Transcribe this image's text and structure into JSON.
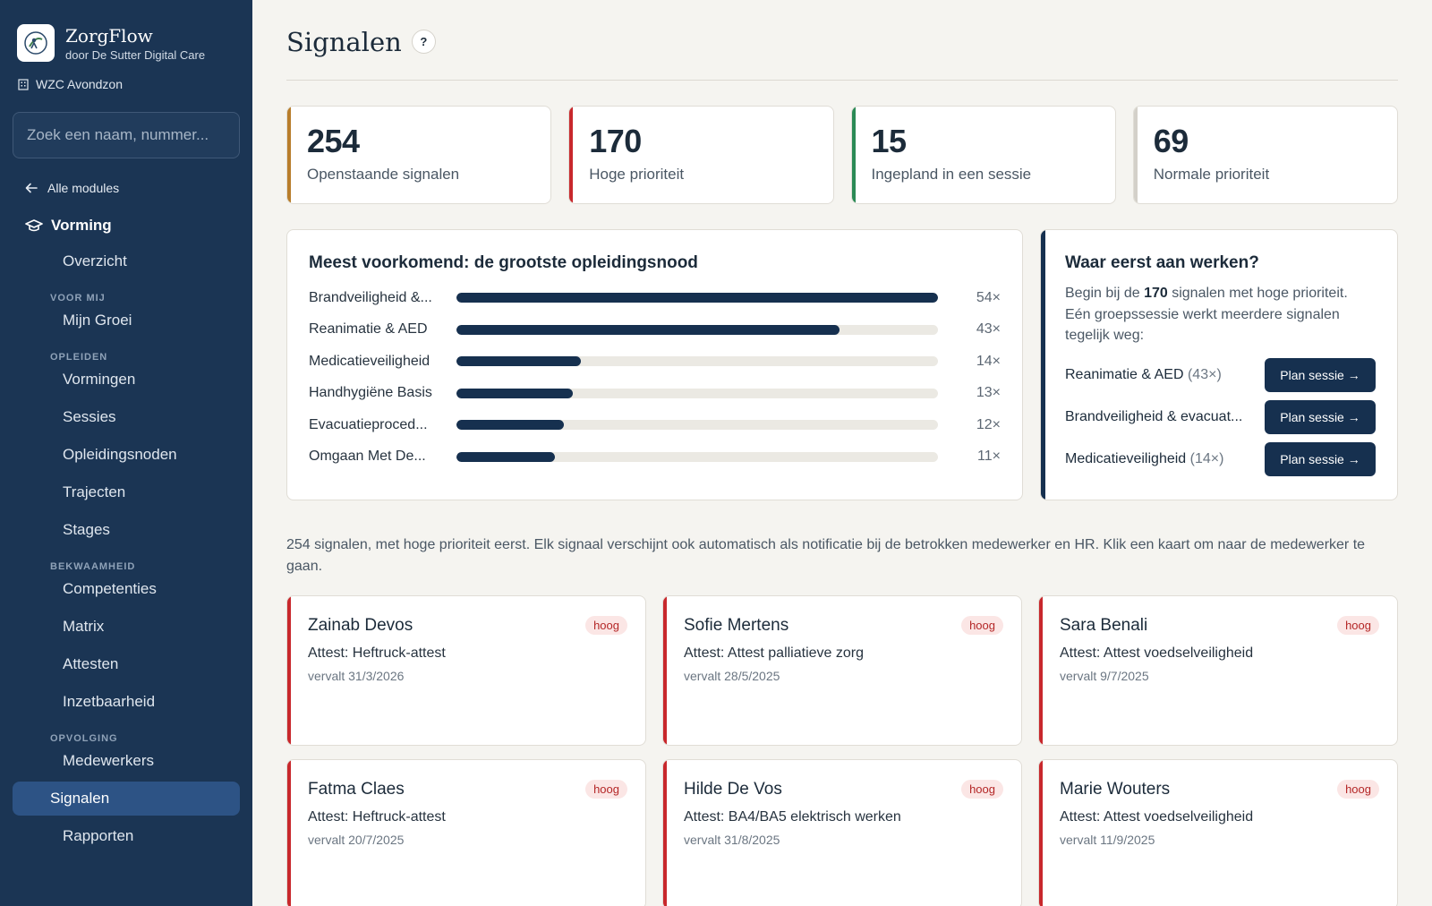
{
  "app": {
    "name": "ZorgFlow",
    "subtitle": "door De Sutter Digital Care",
    "org": "WZC Avondzon"
  },
  "sidebar": {
    "search_placeholder": "Zoek een naam, nummer...",
    "back_label": "Alle modules",
    "module_label": "Vorming",
    "items": [
      {
        "label": "Overzicht"
      },
      {
        "section": "VOOR MIJ"
      },
      {
        "label": "Mijn Groei"
      },
      {
        "section": "OPLEIDEN"
      },
      {
        "label": "Vormingen"
      },
      {
        "label": "Sessies"
      },
      {
        "label": "Opleidingsnoden"
      },
      {
        "label": "Trajecten"
      },
      {
        "label": "Stages"
      },
      {
        "section": "BEKWAAMHEID"
      },
      {
        "label": "Competenties"
      },
      {
        "label": "Matrix"
      },
      {
        "label": "Attesten"
      },
      {
        "label": "Inzetbaarheid"
      },
      {
        "section": "OPVOLGING"
      },
      {
        "label": "Medewerkers"
      },
      {
        "label": "Signalen",
        "active": true
      },
      {
        "label": "Rapporten"
      }
    ]
  },
  "page": {
    "title": "Signalen",
    "help_label": "?"
  },
  "stats": [
    {
      "value": "254",
      "label": "Openstaande signalen",
      "accent": "#b87d2b"
    },
    {
      "value": "170",
      "label": "Hoge prioriteit",
      "accent": "#c8282c"
    },
    {
      "value": "15",
      "label": "Ingepland in een sessie",
      "accent": "#2b8a55"
    },
    {
      "value": "69",
      "label": "Normale prioriteit",
      "accent": "#d3d0c9"
    }
  ],
  "needs": {
    "title": "Meest voorkomend: de grootste opleidingsnood",
    "max": 54,
    "items": [
      {
        "label": "Brandveiligheid &...",
        "value": 54,
        "count_label": "54×"
      },
      {
        "label": "Reanimatie & AED",
        "value": 43,
        "count_label": "43×"
      },
      {
        "label": "Medicatieveiligheid",
        "value": 14,
        "count_label": "14×"
      },
      {
        "label": "Handhygiëne Basis",
        "value": 13,
        "count_label": "13×"
      },
      {
        "label": "Evacuatieproced...",
        "value": 12,
        "count_label": "12×"
      },
      {
        "label": "Omgaan Met De...",
        "value": 11,
        "count_label": "11×"
      }
    ]
  },
  "plan": {
    "title": "Waar eerst aan werken?",
    "desc_pre": "Begin bij de ",
    "desc_bold": "170",
    "desc_post": " signalen met hoge prioriteit. Eén groepssessie werkt meerdere signalen tegelijk weg:",
    "button_label": "Plan sessie →",
    "rows": [
      {
        "label": "Reanimatie & AED",
        "count": "(43×)"
      },
      {
        "label": "Brandveiligheid & evacuat...",
        "count": ""
      },
      {
        "label": "Medicatieveiligheid",
        "count": "(14×)"
      }
    ]
  },
  "note": "254 signalen, met hoge prioriteit eerst. Elk signaal verschijnt ook automatisch als notificatie bij de betrokken medewerker en HR. Klik een kaart om naar de medewerker te gaan.",
  "signals": [
    {
      "name": "Zainab Devos",
      "badge": "hoog",
      "attest": "Attest: Heftruck-attest",
      "due": "vervalt 31/3/2026"
    },
    {
      "name": "Sofie Mertens",
      "badge": "hoog",
      "attest": "Attest: Attest palliatieve zorg",
      "due": "vervalt 28/5/2025"
    },
    {
      "name": "Sara Benali",
      "badge": "hoog",
      "attest": "Attest: Attest voedselveiligheid",
      "due": "vervalt 9/7/2025"
    },
    {
      "name": "Fatma Claes",
      "badge": "hoog",
      "attest": "Attest: Heftruck-attest",
      "due": "vervalt 20/7/2025"
    },
    {
      "name": "Hilde De Vos",
      "badge": "hoog",
      "attest": "Attest: BA4/BA5 elektrisch werken",
      "due": "vervalt 31/8/2025"
    },
    {
      "name": "Marie Wouters",
      "badge": "hoog",
      "attest": "Attest: Attest voedselveiligheid",
      "due": "vervalt 11/9/2025"
    }
  ]
}
